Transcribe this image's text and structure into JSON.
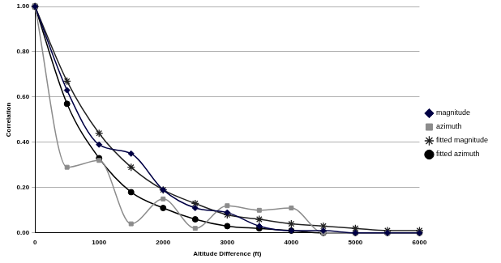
{
  "chart_data": {
    "type": "line",
    "x_label": "Altitude Difference (ft)",
    "y_label": "Correlation",
    "x": [
      0,
      500,
      1000,
      1500,
      2000,
      2500,
      3000,
      3500,
      4000,
      4500,
      5000,
      5500,
      6000
    ],
    "series": [
      {
        "name": "magnitude",
        "color": "#000044",
        "marker": "diamond",
        "line_style": "solid",
        "values": [
          1.0,
          0.63,
          0.39,
          0.35,
          0.19,
          0.11,
          0.09,
          0.03,
          0.01,
          0.01,
          0.0,
          0.0,
          0.0
        ]
      },
      {
        "name": "azimuth",
        "color": "#8c8c8c",
        "marker": "square",
        "line_style": "solid",
        "values": [
          1.0,
          0.29,
          0.32,
          0.04,
          0.15,
          0.02,
          0.12,
          0.1,
          0.11,
          0.0,
          0.0,
          0.0,
          0.0
        ]
      },
      {
        "name": "fitted magnitude",
        "color": "#222222",
        "marker": "star",
        "line_style": "solid",
        "values": [
          1.0,
          0.67,
          0.44,
          0.29,
          0.19,
          0.13,
          0.08,
          0.06,
          0.04,
          0.03,
          0.02,
          0.01,
          0.01
        ]
      },
      {
        "name": "fitted azimuth",
        "color": "#000000",
        "marker": "circle",
        "line_style": "solid",
        "values": [
          1.0,
          0.57,
          0.33,
          0.18,
          0.11,
          0.06,
          0.03,
          0.02,
          0.01,
          0.0,
          0.0,
          0.0,
          0.0
        ]
      }
    ],
    "xlim": [
      0,
      6000
    ],
    "xticks": [
      0,
      1000,
      2000,
      3000,
      4000,
      5000,
      6000
    ],
    "ylim": [
      0,
      1
    ],
    "yticks": [
      {
        "value": 0,
        "label": "0.00"
      },
      {
        "value": 0.2,
        "label": "0.20"
      },
      {
        "value": 0.4,
        "label": "0.40"
      },
      {
        "value": 0.6,
        "label": "0.60"
      },
      {
        "value": 0.8,
        "label": "0.80"
      },
      {
        "value": 1,
        "label": "1.00"
      }
    ],
    "grid": true,
    "legend": "right"
  }
}
